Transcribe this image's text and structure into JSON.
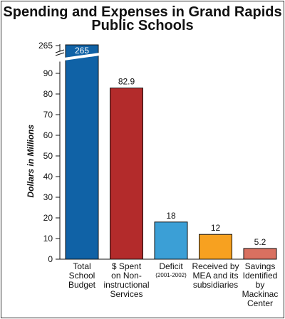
{
  "chart_data": {
    "type": "bar",
    "title_lines": [
      "Spending and Expenses in Grand Rapids",
      "Public Schools"
    ],
    "ylabel": "Dollars in Millions",
    "yticks": [
      0,
      10,
      20,
      30,
      40,
      50,
      60,
      70,
      80,
      90
    ],
    "ybreak_tick": 265,
    "ylim": [
      0,
      95
    ],
    "grid": false,
    "categories": [
      {
        "lines": [
          "Total",
          "School",
          "Budget"
        ],
        "note": "",
        "value": 265,
        "label": "265",
        "color": "#1062a6",
        "broken": true
      },
      {
        "lines": [
          "$ Spent",
          "on Non-",
          "instructional",
          "Services"
        ],
        "note": "",
        "value": 82.9,
        "label": "82.9",
        "color": "#b32b2b",
        "broken": false
      },
      {
        "lines": [
          "Deficit"
        ],
        "note": "(2001-2002)",
        "value": 18,
        "label": "18",
        "color": "#3b9fd6",
        "broken": false
      },
      {
        "lines": [
          "Received by",
          "MEA and its",
          "subsidiaries"
        ],
        "note": "",
        "value": 12,
        "label": "12",
        "color": "#f7a120",
        "broken": false
      },
      {
        "lines": [
          "Savings",
          "Identified",
          "by",
          "Mackinac",
          "Center"
        ],
        "note": "",
        "value": 5.2,
        "label": "5.2",
        "color": "#d97060",
        "broken": false
      }
    ]
  }
}
